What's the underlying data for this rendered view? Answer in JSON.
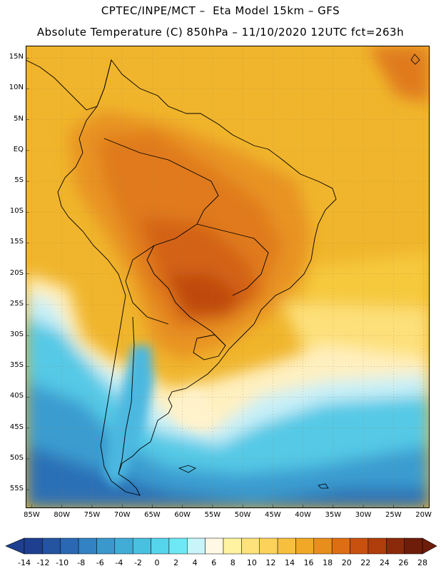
{
  "title": {
    "line1": "CPTEC/INPE/MCT –  Eta Model 15km – GFS",
    "line2": "Absolute Temperature (C) 850hPa – 11/10/2020 12UTC fct=263h"
  },
  "map": {
    "region": "South America",
    "latitude_labels": [
      "15N",
      "10N",
      "5N",
      "EQ",
      "5S",
      "10S",
      "15S",
      "20S",
      "25S",
      "30S",
      "35S",
      "40S",
      "45S",
      "50S",
      "55S"
    ],
    "longitude_labels": [
      "85W",
      "80W",
      "75W",
      "70W",
      "65W",
      "60W",
      "55W",
      "50W",
      "45W",
      "40W",
      "35W",
      "30W",
      "25W",
      "20W"
    ],
    "lat_values": [
      15,
      10,
      5,
      0,
      -5,
      -10,
      -15,
      -20,
      -25,
      -30,
      -35,
      -40,
      -45,
      -50,
      -55
    ],
    "lon_values": [
      -85,
      -80,
      -75,
      -70,
      -65,
      -60,
      -55,
      -50,
      -45,
      -40,
      -35,
      -30,
      -25,
      -20
    ],
    "lat_range": [
      -58,
      17
    ],
    "lon_range": [
      -86,
      -19
    ]
  },
  "colorbar": {
    "labels": [
      "-14",
      "-12",
      "-10",
      "-8",
      "-6",
      "-4",
      "-2",
      "0",
      "2",
      "4",
      "6",
      "8",
      "10",
      "12",
      "14",
      "16",
      "18",
      "20",
      "22",
      "24",
      "26",
      "28"
    ],
    "colors": [
      "#1e3f8f",
      "#2453a0",
      "#2a68b3",
      "#3282c4",
      "#3a98cc",
      "#42acd6",
      "#4ac0e0",
      "#55d4ec",
      "#6ee8f4",
      "#c8f4fa",
      "#fff8e4",
      "#fff2a0",
      "#ffe27a",
      "#fcd25a",
      "#f6bf3e",
      "#f0a826",
      "#e88e1c",
      "#dd6e14",
      "#c9510f",
      "#b03d0c",
      "#8a2a0a",
      "#6e1d0a"
    ],
    "units": "C"
  }
}
